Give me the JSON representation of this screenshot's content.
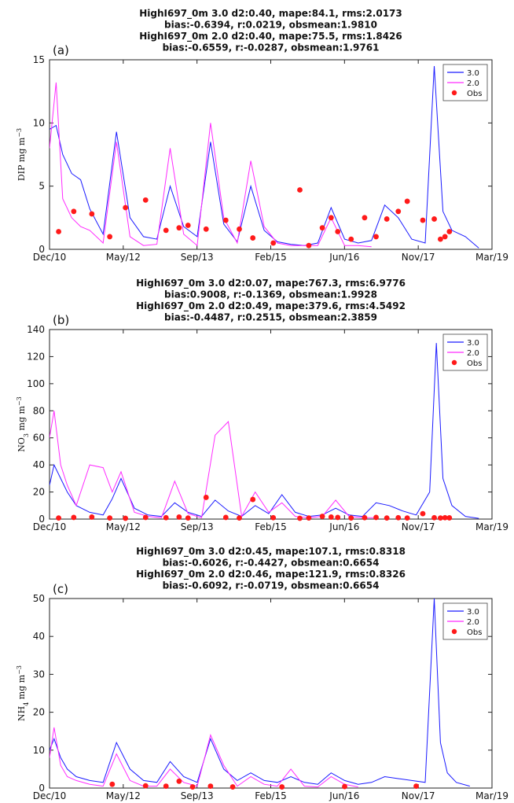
{
  "figure": {
    "background": "#ffffff"
  },
  "colors": {
    "series_3_0": "#1a1aff",
    "series_2_0": "#ff2bff",
    "obs": "#ff1a1a",
    "axis": "#222222"
  },
  "chart_data": [
    {
      "type": "line",
      "panel_label": "(a)",
      "title_lines": [
        "HighI697_0m  3.0 d2:0.40, mape:84.1, rms:2.0173",
        "bias:-0.6394, r:0.0219, obsmean:1.9810",
        "HighI697_0m 2.0 d2:0.40, mape:75.5, rms:1.8426",
        "bias:-0.6559, r:-0.0287, obsmean:1.9761"
      ],
      "ylabel": {
        "main": "DIP",
        "sub": "",
        "unit": " mg m",
        "sup": "−3"
      },
      "xlabel": "",
      "xlim": [
        "2010-12-01",
        "2019-03-01"
      ],
      "ylim": [
        0,
        15
      ],
      "yticks": [
        0,
        5,
        10,
        15
      ],
      "xticks": [
        "Dec/10",
        "May/12",
        "Sep/13",
        "Feb/15",
        "Jun/16",
        "Nov/17",
        "Mar/19"
      ],
      "legend": {
        "placement": "top-right",
        "entries": [
          "3.0",
          "2.0",
          "Obs"
        ]
      },
      "series": [
        {
          "name": "3.0",
          "style": "line",
          "x": [
            "2010-12-01",
            "2011-01-15",
            "2011-03-01",
            "2011-05-01",
            "2011-07-01",
            "2011-09-01",
            "2011-12-01",
            "2012-03-01",
            "2012-06-01",
            "2012-09-01",
            "2012-12-01",
            "2013-03-01",
            "2013-06-01",
            "2013-09-01",
            "2013-12-01",
            "2014-03-01",
            "2014-06-01",
            "2014-09-01",
            "2014-12-01",
            "2015-03-01",
            "2015-06-01",
            "2015-09-01",
            "2015-12-01",
            "2016-03-01",
            "2016-06-01",
            "2016-09-01",
            "2016-12-01",
            "2017-03-01",
            "2017-06-01",
            "2017-09-01",
            "2017-12-01",
            "2018-02-01",
            "2018-04-01",
            "2018-06-01",
            "2018-09-01",
            "2018-12-01"
          ],
          "y": [
            9.5,
            9.8,
            7.5,
            6.0,
            5.5,
            3.2,
            1.2,
            9.3,
            2.5,
            1.0,
            0.8,
            5.0,
            1.8,
            1.0,
            8.5,
            2.0,
            0.6,
            5.0,
            1.5,
            0.6,
            0.4,
            0.3,
            0.5,
            3.3,
            0.8,
            0.5,
            0.7,
            3.5,
            2.5,
            0.8,
            0.5,
            14.5,
            3.0,
            1.5,
            1.0,
            0.1
          ]
        },
        {
          "name": "2.0",
          "style": "line",
          "x": [
            "2010-12-01",
            "2011-01-15",
            "2011-03-01",
            "2011-05-01",
            "2011-07-01",
            "2011-09-01",
            "2011-12-01",
            "2012-03-01",
            "2012-06-01",
            "2012-09-01",
            "2012-12-01",
            "2013-03-01",
            "2013-06-01",
            "2013-09-01",
            "2013-12-01",
            "2014-03-01",
            "2014-06-01",
            "2014-09-01",
            "2014-12-01",
            "2015-03-01",
            "2015-06-01",
            "2015-09-01",
            "2015-12-01",
            "2016-03-01",
            "2016-06-01",
            "2016-09-01",
            "2016-12-01"
          ],
          "y": [
            8.0,
            13.2,
            4.0,
            2.5,
            1.8,
            1.5,
            0.5,
            8.5,
            1.0,
            0.3,
            0.4,
            8.0,
            1.2,
            0.3,
            10.0,
            2.5,
            0.5,
            7.0,
            1.8,
            0.5,
            0.3,
            0.3,
            0.3,
            2.5,
            0.3,
            0.3,
            0.2
          ]
        },
        {
          "name": "Obs",
          "style": "points",
          "x": [
            "2011-02-01",
            "2011-05-15",
            "2011-09-15",
            "2012-01-15",
            "2012-05-01",
            "2012-09-15",
            "2013-02-01",
            "2013-05-01",
            "2013-07-01",
            "2013-11-01",
            "2014-03-15",
            "2014-06-15",
            "2014-09-15",
            "2015-02-01",
            "2015-08-01",
            "2015-10-01",
            "2016-01-01",
            "2016-03-01",
            "2016-04-15",
            "2016-07-15",
            "2016-10-15",
            "2017-01-01",
            "2017-03-15",
            "2017-06-01",
            "2017-08-01",
            "2017-11-15",
            "2018-02-01",
            "2018-03-15",
            "2018-04-15",
            "2018-05-15"
          ],
          "y": [
            1.4,
            3.0,
            2.8,
            1.0,
            3.3,
            3.9,
            1.5,
            1.7,
            1.9,
            1.6,
            2.3,
            1.6,
            0.9,
            0.5,
            4.7,
            0.3,
            1.7,
            2.5,
            1.4,
            0.8,
            2.5,
            1.0,
            2.4,
            3.0,
            3.8,
            2.3,
            2.4,
            0.8,
            1.0,
            1.4
          ]
        }
      ]
    },
    {
      "type": "line",
      "panel_label": "(b)",
      "title_lines": [
        "HighI697_0m  3.0 d2:0.07, mape:767.3, rms:6.9776",
        "bias:0.9008, r:-0.1369, obsmean:1.9928",
        "HighI697_0m 2.0 d2:0.49, mape:379.6, rms:4.5492",
        "bias:-0.4487, r:0.2515, obsmean:2.3859"
      ],
      "ylabel": {
        "main": "NO",
        "sub": "3",
        "unit": " mg m",
        "sup": "−3"
      },
      "xlabel": "",
      "xlim": [
        "2010-12-01",
        "2019-03-01"
      ],
      "ylim": [
        0,
        140
      ],
      "yticks": [
        0,
        20,
        40,
        60,
        80,
        100,
        120,
        140
      ],
      "xticks": [
        "Dec/10",
        "May/12",
        "Sep/13",
        "Feb/15",
        "Jun/16",
        "Nov/17",
        "Mar/19"
      ],
      "legend": {
        "placement": "top-right",
        "entries": [
          "3.0",
          "2.0",
          "Obs"
        ]
      },
      "series": [
        {
          "name": "3.0",
          "style": "line",
          "x": [
            "2010-12-01",
            "2011-01-01",
            "2011-02-15",
            "2011-04-01",
            "2011-06-01",
            "2011-09-01",
            "2011-12-01",
            "2012-02-01",
            "2012-04-01",
            "2012-07-01",
            "2012-10-01",
            "2013-01-01",
            "2013-04-01",
            "2013-07-01",
            "2013-10-01",
            "2014-01-01",
            "2014-04-01",
            "2014-07-01",
            "2014-10-01",
            "2015-01-01",
            "2015-04-01",
            "2015-07-01",
            "2015-10-01",
            "2016-01-01",
            "2016-04-01",
            "2016-07-01",
            "2016-10-01",
            "2017-01-01",
            "2017-04-01",
            "2017-07-01",
            "2017-10-01",
            "2018-01-01",
            "2018-02-15",
            "2018-04-01",
            "2018-06-01",
            "2018-09-01",
            "2018-12-01"
          ],
          "y": [
            25,
            40,
            30,
            20,
            10,
            5,
            3,
            15,
            30,
            8,
            3,
            2,
            12,
            5,
            2,
            14,
            6,
            2,
            10,
            4,
            18,
            5,
            2,
            3,
            8,
            3,
            2,
            12,
            10,
            6,
            3,
            20,
            130,
            30,
            10,
            2,
            0.5
          ]
        },
        {
          "name": "2.0",
          "style": "line",
          "x": [
            "2010-12-01",
            "2011-01-01",
            "2011-02-15",
            "2011-04-01",
            "2011-06-01",
            "2011-09-01",
            "2011-12-01",
            "2012-02-01",
            "2012-04-01",
            "2012-07-01",
            "2012-10-01",
            "2013-01-01",
            "2013-04-01",
            "2013-07-01",
            "2013-10-01",
            "2014-01-01",
            "2014-04-01",
            "2014-07-01",
            "2014-10-01",
            "2015-01-01",
            "2015-04-01",
            "2015-07-01",
            "2015-10-01",
            "2016-01-01",
            "2016-04-01",
            "2016-07-01",
            "2016-10-01",
            "2017-01-01"
          ],
          "y": [
            60,
            80,
            40,
            25,
            10,
            40,
            38,
            20,
            35,
            5,
            2,
            1,
            28,
            4,
            1,
            62,
            72,
            2,
            20,
            5,
            12,
            2,
            1,
            2,
            14,
            2,
            1,
            1
          ]
        },
        {
          "name": "Obs",
          "style": "points",
          "x": [
            "2011-02-01",
            "2011-05-15",
            "2011-09-15",
            "2012-01-15",
            "2012-05-01",
            "2012-09-15",
            "2013-02-01",
            "2013-05-01",
            "2013-07-01",
            "2013-11-01",
            "2014-03-15",
            "2014-06-15",
            "2014-09-15",
            "2015-02-01",
            "2015-08-01",
            "2015-10-01",
            "2016-01-01",
            "2016-03-01",
            "2016-04-15",
            "2016-07-15",
            "2016-10-15",
            "2017-01-01",
            "2017-03-15",
            "2017-06-01",
            "2017-08-01",
            "2017-11-15",
            "2018-02-01",
            "2018-03-15",
            "2018-04-15",
            "2018-05-15"
          ],
          "y": [
            0.8,
            1.2,
            1.5,
            0.8,
            0.6,
            1.2,
            1.0,
            1.5,
            0.8,
            16.0,
            1.2,
            0.8,
            14.5,
            1.0,
            0.6,
            0.8,
            2.0,
            1.5,
            1.2,
            0.8,
            1.0,
            1.2,
            0.8,
            1.0,
            0.8,
            4.0,
            1.0,
            0.8,
            1.0,
            0.9
          ]
        }
      ]
    },
    {
      "type": "line",
      "panel_label": "(c)",
      "title_lines": [
        "HighI697_0m  3.0 d2:0.45, mape:107.1, rms:0.8318",
        "bias:-0.6026, r:-0.4427, obsmean:0.6654",
        "HighI697_0m 2.0 d2:0.46, mape:121.9, rms:0.8326",
        "bias:-0.6092, r:-0.0719, obsmean:0.6654"
      ],
      "ylabel": {
        "main": "NH",
        "sub": "4",
        "unit": " mg m",
        "sup": "−3"
      },
      "xlabel": "",
      "xlim": [
        "2010-12-01",
        "2019-03-01"
      ],
      "ylim": [
        0,
        50
      ],
      "yticks": [
        0,
        10,
        20,
        30,
        40,
        50
      ],
      "xticks": [
        "Dec/10",
        "May/12",
        "Sep/13",
        "Feb/15",
        "Jun/16",
        "Nov/17",
        "Mar/19"
      ],
      "legend": {
        "placement": "top-right",
        "entries": [
          "3.0",
          "2.0",
          "Obs"
        ]
      },
      "series": [
        {
          "name": "3.0",
          "style": "line",
          "x": [
            "2010-12-01",
            "2011-01-01",
            "2011-02-15",
            "2011-04-01",
            "2011-06-01",
            "2011-09-01",
            "2011-12-01",
            "2012-03-01",
            "2012-06-01",
            "2012-09-01",
            "2012-12-01",
            "2013-03-01",
            "2013-06-01",
            "2013-09-01",
            "2013-12-01",
            "2014-03-01",
            "2014-06-01",
            "2014-09-01",
            "2014-12-01",
            "2015-03-01",
            "2015-06-01",
            "2015-09-01",
            "2015-12-01",
            "2016-03-01",
            "2016-06-01",
            "2016-09-01",
            "2016-12-01",
            "2017-03-01",
            "2017-06-01",
            "2017-09-01",
            "2017-12-01",
            "2018-02-01",
            "2018-03-15",
            "2018-05-01",
            "2018-07-01",
            "2018-10-01"
          ],
          "y": [
            10,
            13,
            8,
            5,
            3,
            2,
            1.5,
            12,
            5,
            2,
            1.5,
            7,
            3,
            1.5,
            13,
            5,
            2,
            4,
            2,
            1.5,
            3,
            1.5,
            1,
            4,
            2,
            1,
            1.5,
            3,
            2.5,
            2,
            1.5,
            50,
            12,
            4,
            1.5,
            0.5
          ]
        },
        {
          "name": "2.0",
          "style": "line",
          "x": [
            "2010-12-01",
            "2011-01-01",
            "2011-02-15",
            "2011-04-01",
            "2011-06-01",
            "2011-09-01",
            "2011-12-01",
            "2012-03-01",
            "2012-06-01",
            "2012-09-01",
            "2012-12-01",
            "2013-03-01",
            "2013-06-01",
            "2013-09-01",
            "2013-12-01",
            "2014-03-01",
            "2014-06-01",
            "2014-09-01",
            "2014-12-01",
            "2015-03-01",
            "2015-06-01",
            "2015-09-01",
            "2015-12-01",
            "2016-03-01",
            "2016-06-01",
            "2016-09-01"
          ],
          "y": [
            8,
            16,
            6,
            3,
            2,
            1,
            0.5,
            9,
            2,
            0.5,
            0.5,
            5,
            1.5,
            0.5,
            14,
            6,
            0.5,
            3,
            1,
            0.5,
            5,
            0.5,
            0.3,
            3,
            1,
            0.3
          ]
        },
        {
          "name": "Obs",
          "style": "points",
          "x": [
            "2012-02-01",
            "2012-09-15",
            "2013-02-01",
            "2013-05-01",
            "2013-08-01",
            "2013-12-01",
            "2014-05-01",
            "2015-04-01",
            "2016-06-01",
            "2017-10-01"
          ],
          "y": [
            1.0,
            0.6,
            0.5,
            1.8,
            0.3,
            0.5,
            0.3,
            0.3,
            0.4,
            0.5
          ]
        }
      ]
    }
  ]
}
